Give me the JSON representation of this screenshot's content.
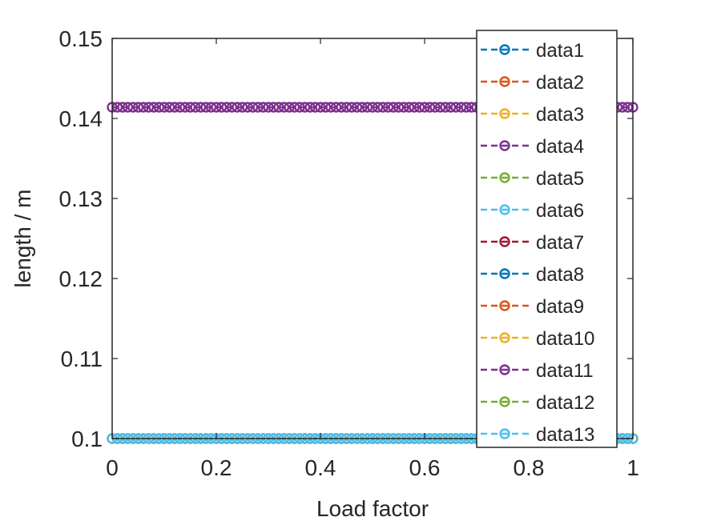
{
  "chart_data": {
    "type": "line",
    "xlabel": "Load factor",
    "ylabel": "length / m",
    "xlim": [
      0,
      1
    ],
    "ylim": [
      0.1,
      0.15
    ],
    "xticks": [
      0,
      0.2,
      0.4,
      0.6,
      0.8,
      1
    ],
    "xtick_labels": [
      "0",
      "0.2",
      "0.4",
      "0.6",
      "0.8",
      "1"
    ],
    "yticks": [
      0.1,
      0.11,
      0.12,
      0.13,
      0.14,
      0.15
    ],
    "ytick_labels": [
      "0.1",
      "0.11",
      "0.12",
      "0.13",
      "0.14",
      "0.15"
    ],
    "grid": false,
    "legend_position": "top-right",
    "marker": "circle",
    "line_style": "dashed",
    "n_points": 101,
    "series": [
      {
        "name": "data1",
        "color": "#0072BD",
        "y": 0.1
      },
      {
        "name": "data2",
        "color": "#D95319",
        "y": 0.1
      },
      {
        "name": "data3",
        "color": "#EDB120",
        "y": 0.1
      },
      {
        "name": "data4",
        "color": "#7E2F8E",
        "y": 0.1414
      },
      {
        "name": "data5",
        "color": "#77AC30",
        "y": 0.1
      },
      {
        "name": "data6",
        "color": "#4DBEEE",
        "y": 0.1
      },
      {
        "name": "data7",
        "color": "#A2142F",
        "y": 0.1
      },
      {
        "name": "data8",
        "color": "#0072BD",
        "y": 0.1
      },
      {
        "name": "data9",
        "color": "#D95319",
        "y": 0.1
      },
      {
        "name": "data10",
        "color": "#EDB120",
        "y": 0.1
      },
      {
        "name": "data11",
        "color": "#7E2F8E",
        "y": 0.1414
      },
      {
        "name": "data12",
        "color": "#77AC30",
        "y": 0.1
      },
      {
        "name": "data13",
        "color": "#4DBEEE",
        "y": 0.1
      }
    ]
  }
}
